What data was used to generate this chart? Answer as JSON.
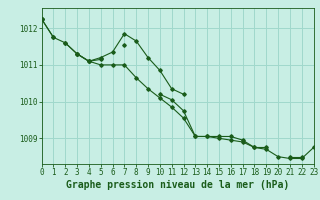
{
  "title": "Graphe pression niveau de la mer (hPa)",
  "bg_color": "#c8eee4",
  "grid_color": "#a0d8cc",
  "line_color": "#1a5c1a",
  "hours": [
    0,
    1,
    2,
    3,
    4,
    5,
    6,
    7,
    8,
    9,
    10,
    11,
    12,
    13,
    14,
    15,
    16,
    17,
    18,
    19,
    20,
    21,
    22,
    23
  ],
  "series1": [
    1012.25,
    1011.75,
    null,
    1011.3,
    1011.1,
    1011.15,
    null,
    1011.55,
    null,
    null,
    1010.2,
    1010.05,
    1009.75,
    1009.05,
    1009.05,
    1009.05,
    1009.05,
    1008.95,
    1008.75,
    1008.75,
    null,
    1008.5,
    1008.5,
    null
  ],
  "series2": [
    1012.25,
    null,
    1011.6,
    1011.3,
    1011.1,
    1011.2,
    1011.35,
    1011.85,
    1011.65,
    1011.2,
    1010.85,
    1010.35,
    1010.2,
    null,
    null,
    null,
    null,
    null,
    null,
    null,
    null,
    null,
    null,
    null
  ],
  "series3": [
    1012.25,
    1011.75,
    1011.6,
    1011.3,
    1011.1,
    1011.0,
    1011.0,
    1011.0,
    1010.65,
    1010.35,
    1010.1,
    1009.85,
    1009.55,
    1009.05,
    1009.05,
    1009.0,
    1008.95,
    1008.9,
    1008.75,
    1008.7,
    1008.5,
    1008.45,
    1008.45,
    1008.75
  ],
  "ylim": [
    1008.3,
    1012.55
  ],
  "yticks": [
    1009,
    1010,
    1011,
    1012
  ],
  "xlim": [
    0,
    23
  ],
  "xticks": [
    0,
    1,
    2,
    3,
    4,
    5,
    6,
    7,
    8,
    9,
    10,
    11,
    12,
    13,
    14,
    15,
    16,
    17,
    18,
    19,
    20,
    21,
    22,
    23
  ],
  "tick_fontsize": 5.5,
  "label_fontsize": 7.0
}
